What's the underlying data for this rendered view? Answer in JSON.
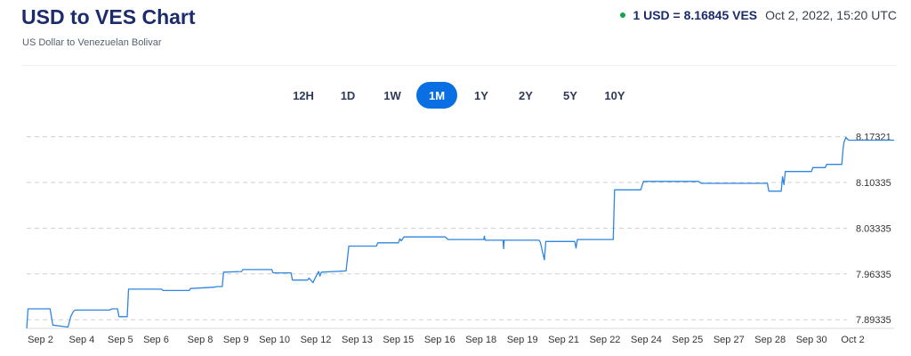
{
  "header": {
    "title": "USD to VES Chart",
    "subtitle": "US Dollar to Venezuelan Bolivar"
  },
  "rate": {
    "value": "1 USD = 8.16845 VES",
    "timestamp": "Oct 2, 2022, 15:20 UTC",
    "status_color": "#16a34a"
  },
  "ranges": [
    {
      "label": "12H",
      "active": false
    },
    {
      "label": "1D",
      "active": false
    },
    {
      "label": "1W",
      "active": false
    },
    {
      "label": "1M",
      "active": true
    },
    {
      "label": "1Y",
      "active": false
    },
    {
      "label": "2Y",
      "active": false
    },
    {
      "label": "5Y",
      "active": false
    },
    {
      "label": "10Y",
      "active": false
    }
  ],
  "chart_data": {
    "type": "line",
    "title": "",
    "xlabel": "",
    "ylabel": "",
    "line_color": "#2f86e0",
    "grid": "horizontal dashed",
    "y_axis_side": "right",
    "ylim": [
      7.88,
      8.185
    ],
    "y_ticks": [
      7.89335,
      7.96335,
      8.03335,
      8.10335,
      8.17321
    ],
    "y_tick_labels": [
      "7.89335",
      "7.96335",
      "8.03335",
      "8.10335",
      "8.17321"
    ],
    "x_ticks": [
      {
        "label": "Sep 2",
        "x": 0.5
      },
      {
        "label": "Sep 4",
        "x": 2.0
      },
      {
        "label": "Sep 5",
        "x": 3.4
      },
      {
        "label": "Sep 6",
        "x": 4.7
      },
      {
        "label": "Sep 8",
        "x": 6.3
      },
      {
        "label": "Sep 9",
        "x": 7.6
      },
      {
        "label": "Sep 10",
        "x": 9.0
      },
      {
        "label": "Sep 12",
        "x": 10.5
      },
      {
        "label": "Sep 13",
        "x": 12.0
      },
      {
        "label": "Sep 15",
        "x": 13.5
      },
      {
        "label": "Sep 16",
        "x": 15.0
      },
      {
        "label": "Sep 18",
        "x": 16.5
      },
      {
        "label": "Sep 19",
        "x": 18.0
      },
      {
        "label": "Sep 21",
        "x": 19.5
      },
      {
        "label": "Sep 22",
        "x": 21.0
      },
      {
        "label": "Sep 24",
        "x": 22.5
      },
      {
        "label": "Sep 25",
        "x": 24.0
      },
      {
        "label": "Sep 27",
        "x": 25.5
      },
      {
        "label": "Sep 28",
        "x": 27.0
      },
      {
        "label": "Sep 30",
        "x": 28.5
      },
      {
        "label": "Oct 2",
        "x": 30.0
      }
    ],
    "series": [
      {
        "points": [
          [
            0.0,
            7.88
          ],
          [
            0.05,
            7.91
          ],
          [
            0.85,
            7.91
          ],
          [
            0.95,
            7.885
          ],
          [
            1.5,
            7.882
          ],
          [
            1.6,
            7.898
          ],
          [
            1.68,
            7.905
          ],
          [
            1.75,
            7.908
          ],
          [
            3.0,
            7.908
          ],
          [
            3.1,
            7.91
          ],
          [
            3.3,
            7.91
          ],
          [
            3.35,
            7.898
          ],
          [
            3.65,
            7.898
          ],
          [
            3.7,
            7.94
          ],
          [
            4.9,
            7.94
          ],
          [
            4.95,
            7.938
          ],
          [
            5.9,
            7.938
          ],
          [
            5.95,
            7.941
          ],
          [
            6.8,
            7.943
          ],
          [
            6.9,
            7.944
          ],
          [
            7.1,
            7.944
          ],
          [
            7.15,
            7.966
          ],
          [
            7.8,
            7.967
          ],
          [
            7.85,
            7.97
          ],
          [
            8.9,
            7.97
          ],
          [
            8.95,
            7.965
          ],
          [
            9.6,
            7.965
          ],
          [
            9.65,
            7.954
          ],
          [
            10.2,
            7.954
          ],
          [
            10.25,
            7.957
          ],
          [
            10.4,
            7.95
          ],
          [
            10.45,
            7.955
          ],
          [
            10.6,
            7.967
          ],
          [
            10.65,
            7.96
          ],
          [
            10.7,
            7.966
          ],
          [
            11.6,
            7.968
          ],
          [
            11.7,
            8.006
          ],
          [
            12.7,
            8.006
          ],
          [
            12.75,
            8.011
          ],
          [
            13.5,
            8.011
          ],
          [
            13.55,
            8.017
          ],
          [
            13.6,
            8.014
          ],
          [
            13.7,
            8.02
          ],
          [
            15.2,
            8.02
          ],
          [
            15.3,
            8.016
          ],
          [
            16.6,
            8.016
          ],
          [
            16.62,
            8.021
          ],
          [
            16.65,
            8.015
          ],
          [
            17.3,
            8.015
          ],
          [
            17.32,
            8.002
          ],
          [
            17.34,
            8.015
          ],
          [
            18.6,
            8.015
          ],
          [
            18.65,
            8.012
          ],
          [
            18.8,
            7.985
          ],
          [
            18.85,
            8.013
          ],
          [
            19.9,
            8.013
          ],
          [
            19.95,
            8.003
          ],
          [
            20.0,
            8.016
          ],
          [
            21.3,
            8.016
          ],
          [
            21.35,
            8.092
          ],
          [
            22.3,
            8.092
          ],
          [
            22.4,
            8.105
          ],
          [
            24.4,
            8.105
          ],
          [
            24.5,
            8.102
          ],
          [
            26.9,
            8.102
          ],
          [
            26.95,
            8.09
          ],
          [
            27.4,
            8.09
          ],
          [
            27.45,
            8.112
          ],
          [
            27.5,
            8.1
          ],
          [
            27.55,
            8.12
          ],
          [
            28.5,
            8.12
          ],
          [
            28.55,
            8.126
          ],
          [
            29.0,
            8.126
          ],
          [
            29.05,
            8.131
          ],
          [
            29.6,
            8.131
          ],
          [
            29.65,
            8.155
          ],
          [
            29.68,
            8.165
          ],
          [
            29.75,
            8.172
          ],
          [
            29.85,
            8.168
          ],
          [
            31.5,
            8.168
          ]
        ]
      }
    ]
  }
}
